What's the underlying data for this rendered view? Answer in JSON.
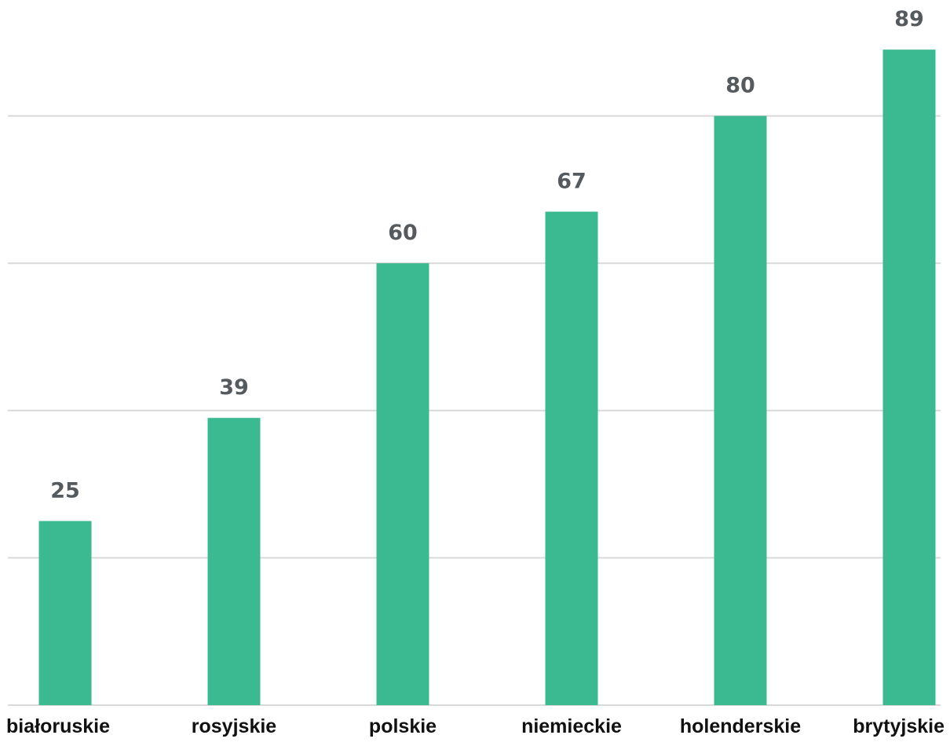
{
  "chart_data": {
    "type": "bar",
    "title": "",
    "xlabel": "",
    "ylabel": "",
    "categories": [
      "białoruskie",
      "rosyjskie",
      "polskie",
      "niemieckie",
      "holenderskie",
      "brytyjskie"
    ],
    "values": [
      25,
      39,
      60,
      67,
      80,
      89
    ],
    "ylim": [
      0,
      100
    ],
    "gridlines": [
      20,
      40,
      60,
      80
    ],
    "grid": true,
    "legend": "none",
    "data_labels": true,
    "bar_color": "#3bba91",
    "grid_color": "#d9d9d9",
    "label_color": "#555a5f"
  }
}
